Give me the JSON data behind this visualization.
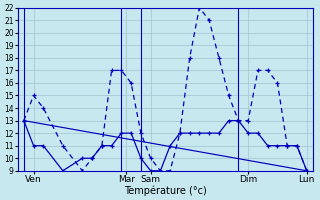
{
  "background_color": "#c8e8f0",
  "grid_color": "#a0c4d0",
  "line_color": "#0000bb",
  "xlabel": "Température (°c)",
  "ylim_min": 9,
  "ylim_max": 22,
  "xlim_min": -0.3,
  "xlim_max": 14.8,
  "vline_positions": [
    0,
    5,
    6,
    11,
    15
  ],
  "day_labels": [
    "Ven",
    "Mar",
    "Sam",
    "Dim",
    "Lun"
  ],
  "day_positions": [
    0.5,
    5.25,
    6.5,
    11.5,
    14.5
  ],
  "s1x": [
    0,
    0.5,
    1,
    2,
    3,
    3.5,
    4,
    4.5,
    5,
    5.5,
    6,
    6.5,
    7,
    7.5,
    8,
    8.5,
    9,
    9.5,
    10,
    10.5,
    11,
    11.5,
    12,
    12.5,
    13,
    13.5,
    14,
    14.5
  ],
  "s1y": [
    13,
    15,
    14,
    11,
    9,
    10,
    11,
    17,
    17,
    16,
    12,
    10,
    9,
    9,
    12,
    18,
    22,
    21,
    18,
    15,
    13,
    13,
    17,
    17,
    16,
    11,
    11,
    9
  ],
  "s2x": [
    0,
    0.5,
    1,
    2,
    3,
    3.5,
    4,
    4.5,
    5,
    5.5,
    6,
    6.5,
    7,
    7.5,
    8,
    8.5,
    9,
    9.5,
    10,
    10.5,
    11,
    11.5,
    12,
    12.5,
    13,
    13.5,
    14,
    14.5
  ],
  "s2y": [
    13,
    11,
    11,
    9,
    10,
    10,
    11,
    11,
    12,
    12,
    10,
    9,
    9,
    11,
    12,
    12,
    12,
    12,
    12,
    13,
    13,
    12,
    12,
    11,
    11,
    11,
    11,
    9
  ],
  "s3x": [
    0,
    14.5
  ],
  "s3y": [
    13,
    9
  ]
}
